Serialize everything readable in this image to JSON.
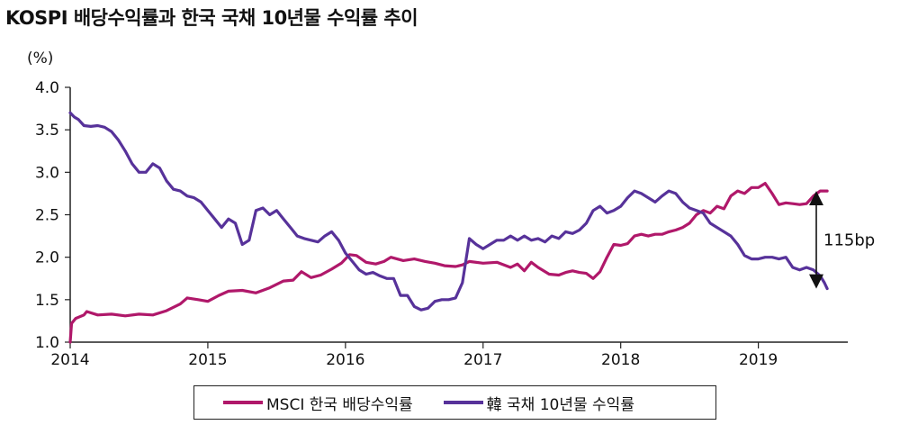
{
  "title": "KOSPI 배당수익률과 한국 국채 10년물 수익률 추이",
  "chart_data": {
    "type": "line",
    "title": "KOSPI 배당수익률과 한국 국채 10년물 수익률 추이",
    "ylabel": "(%)",
    "xlabel": "",
    "ylim": [
      1.0,
      4.0
    ],
    "yticks": [
      "1.0",
      "1.5",
      "2.0",
      "2.5",
      "3.0",
      "3.5",
      "4.0"
    ],
    "xlim": [
      2014.0,
      2019.65
    ],
    "xticks": [
      "2014",
      "2015",
      "2016",
      "2017",
      "2018",
      "2019"
    ],
    "grid": false,
    "legend_position": "bottom",
    "series": [
      {
        "name": "MSCI 한국 배당수익률",
        "color": "#b0186a",
        "points": [
          [
            2014.0,
            1.0
          ],
          [
            2014.01,
            1.22
          ],
          [
            2014.04,
            1.28
          ],
          [
            2014.1,
            1.32
          ],
          [
            2014.12,
            1.36
          ],
          [
            2014.2,
            1.32
          ],
          [
            2014.3,
            1.33
          ],
          [
            2014.4,
            1.31
          ],
          [
            2014.5,
            1.33
          ],
          [
            2014.6,
            1.32
          ],
          [
            2014.7,
            1.37
          ],
          [
            2014.8,
            1.45
          ],
          [
            2014.85,
            1.52
          ],
          [
            2014.93,
            1.5
          ],
          [
            2015.0,
            1.48
          ],
          [
            2015.08,
            1.55
          ],
          [
            2015.15,
            1.6
          ],
          [
            2015.25,
            1.61
          ],
          [
            2015.35,
            1.58
          ],
          [
            2015.45,
            1.64
          ],
          [
            2015.55,
            1.72
          ],
          [
            2015.62,
            1.73
          ],
          [
            2015.68,
            1.83
          ],
          [
            2015.75,
            1.76
          ],
          [
            2015.82,
            1.79
          ],
          [
            2015.9,
            1.86
          ],
          [
            2015.97,
            1.93
          ],
          [
            2016.03,
            2.03
          ],
          [
            2016.08,
            2.02
          ],
          [
            2016.15,
            1.94
          ],
          [
            2016.22,
            1.92
          ],
          [
            2016.28,
            1.95
          ],
          [
            2016.33,
            2.0
          ],
          [
            2016.42,
            1.96
          ],
          [
            2016.5,
            1.98
          ],
          [
            2016.58,
            1.95
          ],
          [
            2016.65,
            1.93
          ],
          [
            2016.72,
            1.9
          ],
          [
            2016.8,
            1.89
          ],
          [
            2016.85,
            1.91
          ],
          [
            2016.9,
            1.95
          ],
          [
            2017.0,
            1.93
          ],
          [
            2017.1,
            1.94
          ],
          [
            2017.2,
            1.88
          ],
          [
            2017.25,
            1.92
          ],
          [
            2017.3,
            1.84
          ],
          [
            2017.35,
            1.94
          ],
          [
            2017.4,
            1.88
          ],
          [
            2017.48,
            1.8
          ],
          [
            2017.55,
            1.79
          ],
          [
            2017.6,
            1.82
          ],
          [
            2017.65,
            1.84
          ],
          [
            2017.7,
            1.82
          ],
          [
            2017.75,
            1.81
          ],
          [
            2017.8,
            1.75
          ],
          [
            2017.85,
            1.83
          ],
          [
            2017.9,
            2.0
          ],
          [
            2017.95,
            2.15
          ],
          [
            2018.0,
            2.14
          ],
          [
            2018.05,
            2.16
          ],
          [
            2018.1,
            2.25
          ],
          [
            2018.15,
            2.27
          ],
          [
            2018.2,
            2.25
          ],
          [
            2018.25,
            2.27
          ],
          [
            2018.3,
            2.27
          ],
          [
            2018.35,
            2.3
          ],
          [
            2018.4,
            2.32
          ],
          [
            2018.45,
            2.35
          ],
          [
            2018.5,
            2.4
          ],
          [
            2018.55,
            2.5
          ],
          [
            2018.6,
            2.55
          ],
          [
            2018.65,
            2.52
          ],
          [
            2018.7,
            2.6
          ],
          [
            2018.75,
            2.57
          ],
          [
            2018.8,
            2.72
          ],
          [
            2018.85,
            2.78
          ],
          [
            2018.9,
            2.75
          ],
          [
            2018.95,
            2.82
          ],
          [
            2019.0,
            2.82
          ],
          [
            2019.05,
            2.87
          ],
          [
            2019.1,
            2.75
          ],
          [
            2019.15,
            2.62
          ],
          [
            2019.2,
            2.64
          ],
          [
            2019.25,
            2.63
          ],
          [
            2019.3,
            2.62
          ],
          [
            2019.35,
            2.63
          ],
          [
            2019.4,
            2.72
          ],
          [
            2019.45,
            2.78
          ],
          [
            2019.5,
            2.78
          ]
        ]
      },
      {
        "name": "韓 국채 10년물 수익률",
        "color": "#57329a",
        "points": [
          [
            2014.0,
            3.7
          ],
          [
            2014.03,
            3.65
          ],
          [
            2014.06,
            3.62
          ],
          [
            2014.1,
            3.55
          ],
          [
            2014.15,
            3.54
          ],
          [
            2014.2,
            3.55
          ],
          [
            2014.25,
            3.53
          ],
          [
            2014.3,
            3.48
          ],
          [
            2014.35,
            3.38
          ],
          [
            2014.4,
            3.25
          ],
          [
            2014.45,
            3.1
          ],
          [
            2014.5,
            3.0
          ],
          [
            2014.55,
            3.0
          ],
          [
            2014.6,
            3.1
          ],
          [
            2014.65,
            3.05
          ],
          [
            2014.7,
            2.9
          ],
          [
            2014.75,
            2.8
          ],
          [
            2014.8,
            2.78
          ],
          [
            2014.85,
            2.72
          ],
          [
            2014.9,
            2.7
          ],
          [
            2014.95,
            2.65
          ],
          [
            2015.0,
            2.55
          ],
          [
            2015.05,
            2.45
          ],
          [
            2015.1,
            2.35
          ],
          [
            2015.15,
            2.45
          ],
          [
            2015.2,
            2.4
          ],
          [
            2015.25,
            2.15
          ],
          [
            2015.3,
            2.2
          ],
          [
            2015.35,
            2.55
          ],
          [
            2015.4,
            2.58
          ],
          [
            2015.45,
            2.5
          ],
          [
            2015.5,
            2.55
          ],
          [
            2015.55,
            2.45
          ],
          [
            2015.6,
            2.35
          ],
          [
            2015.65,
            2.25
          ],
          [
            2015.7,
            2.22
          ],
          [
            2015.75,
            2.2
          ],
          [
            2015.8,
            2.18
          ],
          [
            2015.85,
            2.25
          ],
          [
            2015.9,
            2.3
          ],
          [
            2015.95,
            2.2
          ],
          [
            2016.0,
            2.05
          ],
          [
            2016.05,
            1.95
          ],
          [
            2016.1,
            1.85
          ],
          [
            2016.15,
            1.8
          ],
          [
            2016.2,
            1.82
          ],
          [
            2016.25,
            1.78
          ],
          [
            2016.3,
            1.75
          ],
          [
            2016.35,
            1.75
          ],
          [
            2016.4,
            1.55
          ],
          [
            2016.45,
            1.55
          ],
          [
            2016.5,
            1.42
          ],
          [
            2016.55,
            1.38
          ],
          [
            2016.6,
            1.4
          ],
          [
            2016.65,
            1.48
          ],
          [
            2016.7,
            1.5
          ],
          [
            2016.75,
            1.5
          ],
          [
            2016.8,
            1.52
          ],
          [
            2016.85,
            1.7
          ],
          [
            2016.9,
            2.22
          ],
          [
            2016.95,
            2.15
          ],
          [
            2017.0,
            2.1
          ],
          [
            2017.05,
            2.15
          ],
          [
            2017.1,
            2.2
          ],
          [
            2017.15,
            2.2
          ],
          [
            2017.2,
            2.25
          ],
          [
            2017.25,
            2.2
          ],
          [
            2017.3,
            2.25
          ],
          [
            2017.35,
            2.2
          ],
          [
            2017.4,
            2.22
          ],
          [
            2017.45,
            2.18
          ],
          [
            2017.5,
            2.25
          ],
          [
            2017.55,
            2.22
          ],
          [
            2017.6,
            2.3
          ],
          [
            2017.65,
            2.28
          ],
          [
            2017.7,
            2.32
          ],
          [
            2017.75,
            2.4
          ],
          [
            2017.8,
            2.55
          ],
          [
            2017.85,
            2.6
          ],
          [
            2017.9,
            2.52
          ],
          [
            2017.95,
            2.55
          ],
          [
            2018.0,
            2.6
          ],
          [
            2018.05,
            2.7
          ],
          [
            2018.1,
            2.78
          ],
          [
            2018.15,
            2.75
          ],
          [
            2018.2,
            2.7
          ],
          [
            2018.25,
            2.65
          ],
          [
            2018.3,
            2.72
          ],
          [
            2018.35,
            2.78
          ],
          [
            2018.4,
            2.75
          ],
          [
            2018.45,
            2.65
          ],
          [
            2018.5,
            2.58
          ],
          [
            2018.55,
            2.55
          ],
          [
            2018.6,
            2.52
          ],
          [
            2018.65,
            2.4
          ],
          [
            2018.7,
            2.35
          ],
          [
            2018.75,
            2.3
          ],
          [
            2018.8,
            2.25
          ],
          [
            2018.85,
            2.15
          ],
          [
            2018.9,
            2.02
          ],
          [
            2018.95,
            1.98
          ],
          [
            2019.0,
            1.98
          ],
          [
            2019.05,
            2.0
          ],
          [
            2019.1,
            2.0
          ],
          [
            2019.15,
            1.98
          ],
          [
            2019.2,
            2.0
          ],
          [
            2019.25,
            1.88
          ],
          [
            2019.3,
            1.85
          ],
          [
            2019.35,
            1.88
          ],
          [
            2019.4,
            1.85
          ],
          [
            2019.45,
            1.78
          ],
          [
            2019.48,
            1.7
          ],
          [
            2019.5,
            1.63
          ]
        ]
      }
    ],
    "annotations": [
      {
        "text": "115bp",
        "x": 2019.5,
        "from": 1.63,
        "to": 2.78
      }
    ]
  }
}
